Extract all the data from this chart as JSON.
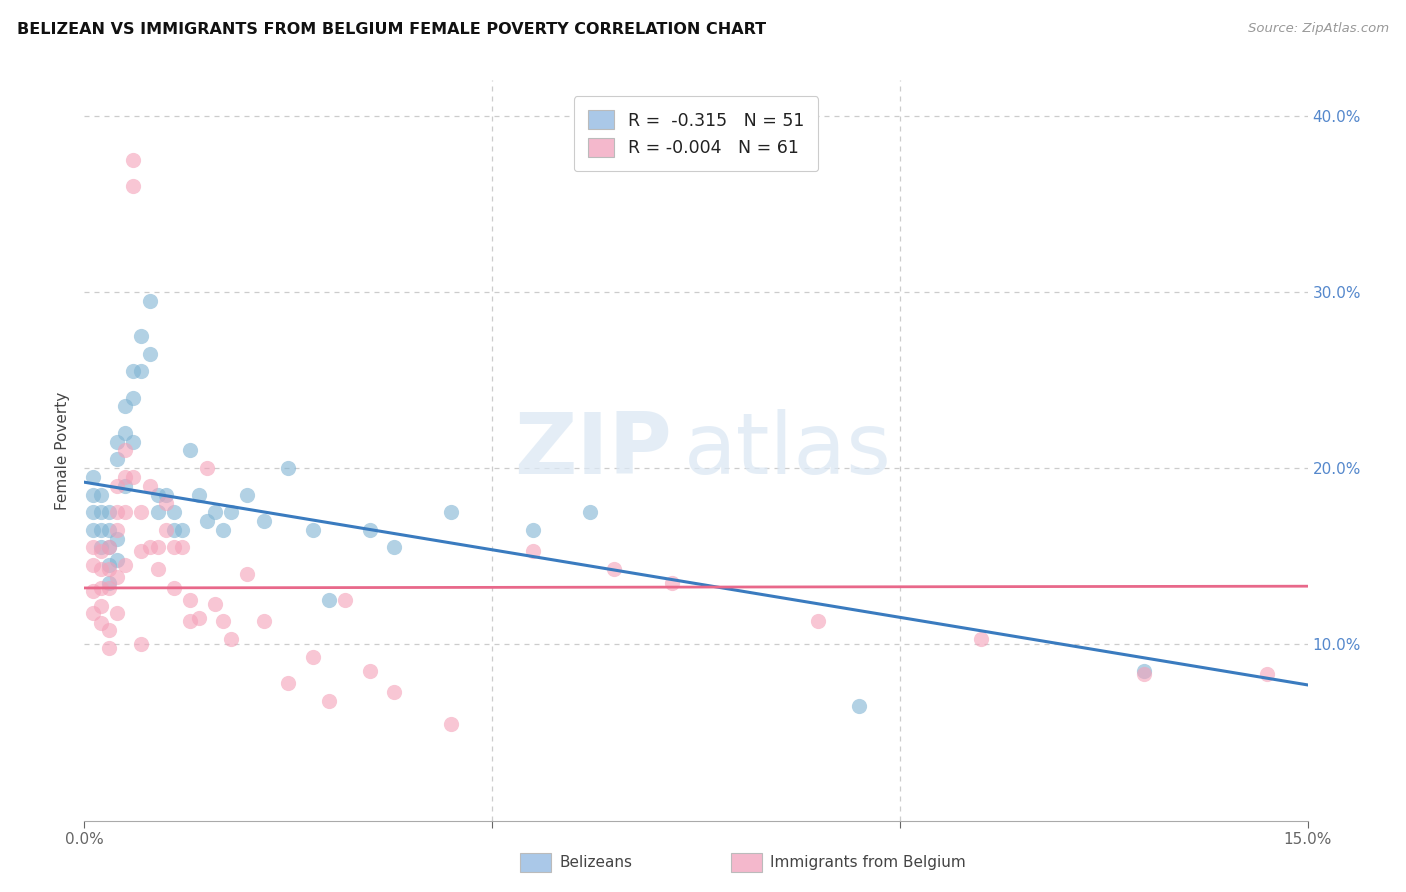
{
  "title": "BELIZEAN VS IMMIGRANTS FROM BELGIUM FEMALE POVERTY CORRELATION CHART",
  "source": "Source: ZipAtlas.com",
  "ylabel": "Female Poverty",
  "xlim": [
    0.0,
    0.15
  ],
  "ylim": [
    0.0,
    0.42
  ],
  "xtick_positions": [
    0.0,
    0.05,
    0.1,
    0.15
  ],
  "xticklabels": [
    "0.0%",
    "",
    "",
    "15.0%"
  ],
  "yticks_right": [
    0.1,
    0.2,
    0.3,
    0.4
  ],
  "ytick_right_labels": [
    "10.0%",
    "20.0%",
    "30.0%",
    "40.0%"
  ],
  "legend_r1": "R =  -0.315   N = 51",
  "legend_r2": "R = -0.004   N = 61",
  "blue_scatter_color": "#7fb3d3",
  "pink_scatter_color": "#f4a0b8",
  "blue_line_color": "#3a7bbf",
  "pink_line_color": "#e8688a",
  "blue_legend_color": "#aac8e8",
  "pink_legend_color": "#f4b8cc",
  "grid_color": "#cccccc",
  "blue_line_x0": 0.0,
  "blue_line_y0": 0.192,
  "blue_line_x1": 0.15,
  "blue_line_y1": 0.077,
  "pink_line_x0": 0.0,
  "pink_line_y0": 0.132,
  "pink_line_x1": 0.15,
  "pink_line_y1": 0.133,
  "belizeans_x": [
    0.001,
    0.001,
    0.001,
    0.001,
    0.002,
    0.002,
    0.002,
    0.002,
    0.003,
    0.003,
    0.003,
    0.003,
    0.003,
    0.004,
    0.004,
    0.004,
    0.004,
    0.005,
    0.005,
    0.005,
    0.006,
    0.006,
    0.006,
    0.007,
    0.007,
    0.008,
    0.008,
    0.009,
    0.009,
    0.01,
    0.011,
    0.011,
    0.012,
    0.013,
    0.014,
    0.015,
    0.016,
    0.017,
    0.018,
    0.02,
    0.022,
    0.025,
    0.028,
    0.03,
    0.035,
    0.038,
    0.045,
    0.055,
    0.062,
    0.095,
    0.13
  ],
  "belizeans_y": [
    0.195,
    0.185,
    0.175,
    0.165,
    0.185,
    0.175,
    0.165,
    0.155,
    0.175,
    0.165,
    0.155,
    0.145,
    0.135,
    0.215,
    0.205,
    0.16,
    0.148,
    0.235,
    0.22,
    0.19,
    0.255,
    0.24,
    0.215,
    0.275,
    0.255,
    0.295,
    0.265,
    0.185,
    0.175,
    0.185,
    0.175,
    0.165,
    0.165,
    0.21,
    0.185,
    0.17,
    0.175,
    0.165,
    0.175,
    0.185,
    0.17,
    0.2,
    0.165,
    0.125,
    0.165,
    0.155,
    0.175,
    0.165,
    0.175,
    0.065,
    0.085
  ],
  "immigrants_x": [
    0.001,
    0.001,
    0.001,
    0.001,
    0.002,
    0.002,
    0.002,
    0.002,
    0.002,
    0.003,
    0.003,
    0.003,
    0.003,
    0.003,
    0.004,
    0.004,
    0.004,
    0.004,
    0.004,
    0.005,
    0.005,
    0.005,
    0.005,
    0.006,
    0.006,
    0.006,
    0.007,
    0.007,
    0.007,
    0.008,
    0.008,
    0.009,
    0.009,
    0.01,
    0.01,
    0.011,
    0.011,
    0.012,
    0.013,
    0.013,
    0.014,
    0.015,
    0.016,
    0.017,
    0.018,
    0.02,
    0.022,
    0.025,
    0.028,
    0.03,
    0.032,
    0.035,
    0.038,
    0.045,
    0.055,
    0.065,
    0.072,
    0.09,
    0.11,
    0.13,
    0.145
  ],
  "immigrants_y": [
    0.155,
    0.145,
    0.13,
    0.118,
    0.153,
    0.143,
    0.132,
    0.122,
    0.112,
    0.155,
    0.143,
    0.132,
    0.108,
    0.098,
    0.19,
    0.175,
    0.165,
    0.138,
    0.118,
    0.21,
    0.195,
    0.175,
    0.145,
    0.375,
    0.36,
    0.195,
    0.175,
    0.153,
    0.1,
    0.19,
    0.155,
    0.155,
    0.143,
    0.18,
    0.165,
    0.155,
    0.132,
    0.155,
    0.125,
    0.113,
    0.115,
    0.2,
    0.123,
    0.113,
    0.103,
    0.14,
    0.113,
    0.078,
    0.093,
    0.068,
    0.125,
    0.085,
    0.073,
    0.055,
    0.153,
    0.143,
    0.135,
    0.113,
    0.103,
    0.083,
    0.083
  ]
}
